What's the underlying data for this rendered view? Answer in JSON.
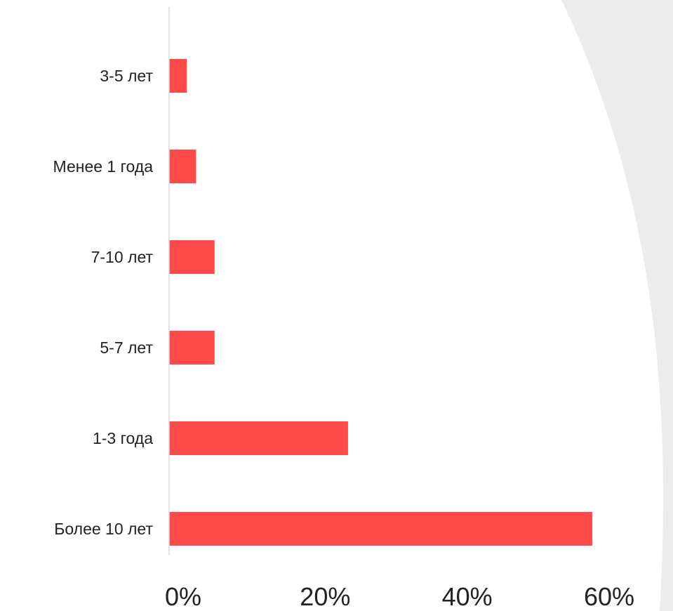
{
  "chart_data": {
    "type": "bar",
    "orientation": "horizontal",
    "categories": [
      "3-5 лет",
      "Менее 1 года",
      "7-10 лет",
      "5-7 лет",
      "1-3 года",
      "Более 10 лет"
    ],
    "values": [
      2.5,
      3.8,
      6.4,
      6.4,
      25.2,
      59.6
    ],
    "xlim": [
      0,
      60
    ],
    "xticks": [
      "0%",
      "20%",
      "40%",
      "60%"
    ],
    "xtick_values": [
      0,
      20,
      40,
      60
    ],
    "title": "",
    "xlabel": "",
    "ylabel": "",
    "grid": false,
    "legend": "none",
    "bar_color": "#FF4A4A"
  },
  "colors": {
    "bar": "#FF4A4A",
    "axis": "#d9d9d9",
    "text": "#222222",
    "background_shape": "#ececec"
  }
}
